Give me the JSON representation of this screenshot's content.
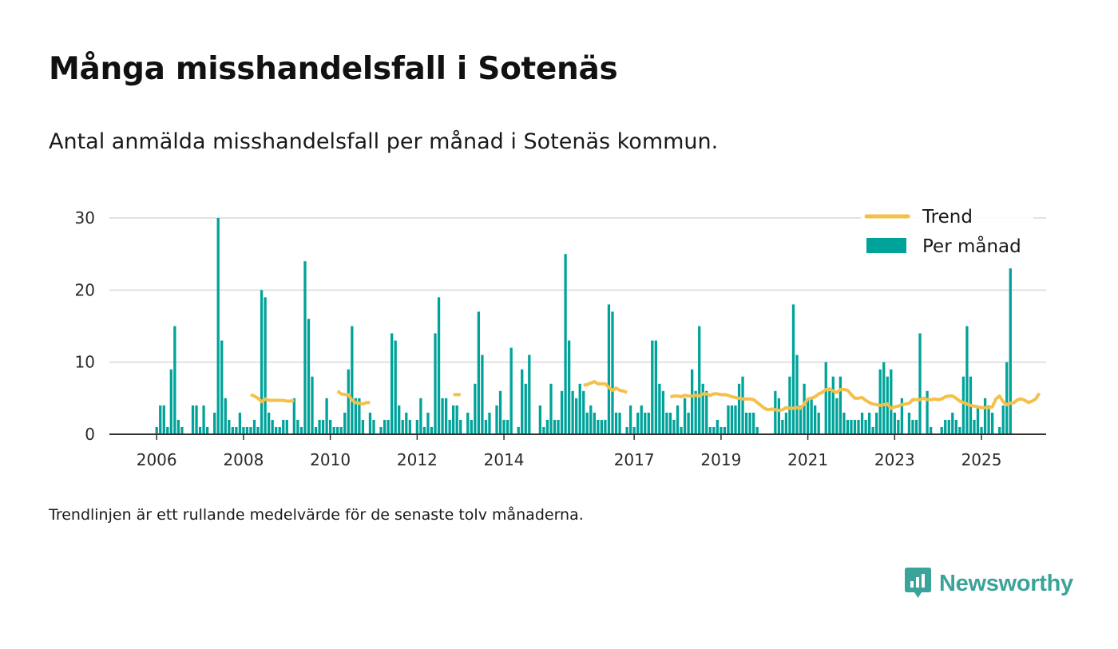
{
  "title": "Många misshandelsfall i Sotenäs",
  "subtitle": "Antal anmälda misshandelsfall per månad i Sotenäs kommun.",
  "note": "Trendlinjen är ett rullande medelvärde för de senaste tolv månaderna.",
  "brand": {
    "name": "Newsworthy",
    "icon": "newsworthy-logo-icon"
  },
  "colors": {
    "bars": "#00a39a",
    "trend": "#f5c04a",
    "grid": "#d9d9d9",
    "axis": "#333333",
    "brand": "#3aa39a"
  },
  "chart_data": {
    "type": "bar",
    "x_start": "2006-01",
    "xlabel": "",
    "ylabel": "",
    "ylim": [
      0,
      30
    ],
    "yticks": [
      0,
      10,
      20,
      30
    ],
    "xticks": [
      "2006",
      "2008",
      "2010",
      "2012",
      "2014",
      "2017",
      "2019",
      "2021",
      "2023",
      "2025"
    ],
    "grid": true,
    "legend_position": "top-right",
    "series": [
      {
        "name": "Per månad",
        "type": "bar",
        "values": [
          1,
          4,
          4,
          1,
          9,
          15,
          2,
          1,
          0,
          0,
          4,
          4,
          1,
          4,
          1,
          0,
          3,
          30,
          13,
          5,
          2,
          1,
          1,
          3,
          1,
          1,
          1,
          2,
          1,
          20,
          19,
          3,
          2,
          1,
          1,
          2,
          2,
          0,
          5,
          2,
          1,
          24,
          16,
          8,
          1,
          2,
          2,
          5,
          2,
          1,
          1,
          1,
          3,
          9,
          15,
          5,
          5,
          2,
          0,
          3,
          2,
          0,
          1,
          2,
          2,
          14,
          13,
          4,
          2,
          3,
          2,
          0,
          2,
          5,
          1,
          3,
          1,
          14,
          19,
          5,
          5,
          2,
          4,
          4,
          2,
          0,
          3,
          2,
          7,
          17,
          11,
          2,
          3,
          0,
          4,
          6,
          2,
          2,
          12,
          0,
          1,
          9,
          7,
          11,
          0,
          0,
          4,
          1,
          2,
          7,
          2,
          2,
          6,
          25,
          13,
          6,
          5,
          7,
          6,
          3,
          4,
          3,
          2,
          2,
          2,
          18,
          17,
          3,
          3,
          0,
          1,
          4,
          1,
          3,
          4,
          3,
          3,
          13,
          13,
          7,
          6,
          3,
          3,
          2,
          4,
          1,
          5,
          3,
          9,
          6,
          15,
          7,
          6,
          1,
          1,
          2,
          1,
          1,
          4,
          4,
          4,
          7,
          8,
          3,
          3,
          3,
          1,
          0,
          0,
          0,
          0,
          6,
          5,
          2,
          3,
          8,
          18,
          11,
          4,
          7,
          5,
          5,
          4,
          3,
          0,
          10,
          6,
          8,
          5,
          8,
          3,
          2,
          2,
          2,
          2,
          3,
          2,
          3,
          1,
          3,
          9,
          10,
          8,
          9,
          3,
          2,
          5,
          0,
          3,
          2,
          2,
          14,
          0,
          6,
          1,
          0,
          0,
          1,
          2,
          2,
          3,
          2,
          1,
          8,
          15,
          8,
          2,
          4,
          1,
          5,
          4,
          3,
          0,
          1,
          4,
          10,
          23
        ]
      },
      {
        "name": "Trend",
        "type": "line",
        "values": [
          null,
          null,
          null,
          null,
          null,
          null,
          null,
          null,
          null,
          null,
          null,
          null,
          null,
          null,
          null,
          null,
          null,
          null,
          null,
          null,
          null,
          null,
          null,
          null,
          null,
          null,
          5.5,
          5.3,
          5.0,
          4.5,
          4.9,
          4.7,
          4.7,
          4.7,
          4.7,
          4.7,
          4.6,
          4.6,
          4.7,
          null,
          null,
          null,
          null,
          null,
          null,
          null,
          null,
          null,
          null,
          null,
          6.0,
          5.6,
          5.5,
          5.5,
          4.7,
          4.4,
          4.3,
          4.2,
          4.4,
          4.4,
          null,
          null,
          null,
          null,
          null,
          null,
          null,
          null,
          null,
          null,
          null,
          null,
          null,
          null,
          null,
          null,
          null,
          null,
          null,
          null,
          null,
          null,
          5.5,
          5.5,
          5.5,
          null,
          null,
          null,
          null,
          null,
          null,
          null,
          null,
          null,
          null,
          null,
          null,
          null,
          null,
          null,
          null,
          null,
          null,
          null,
          null,
          null,
          null,
          null,
          null,
          null,
          null,
          null,
          null,
          null,
          null,
          null,
          null,
          null,
          6.8,
          6.9,
          7.1,
          7.3,
          7.0,
          7.0,
          7.0,
          6.5,
          6.1,
          6.4,
          6.1,
          6.0,
          5.8,
          null,
          null,
          null,
          null,
          null,
          null,
          null,
          null,
          null,
          null,
          null,
          5.2,
          5.3,
          5.3,
          5.2,
          5.4,
          5.3,
          5.3,
          5.4,
          5.3,
          5.6,
          5.6,
          5.4,
          5.6,
          5.6,
          5.5,
          5.5,
          5.4,
          5.2,
          5.1,
          5.0,
          4.9,
          4.9,
          4.9,
          4.8,
          4.4,
          4.0,
          3.6,
          3.4,
          3.5,
          3.4,
          3.3,
          3.4,
          3.7,
          3.6,
          3.6,
          3.7,
          3.6,
          4.2,
          4.9,
          5.0,
          5.2,
          5.6,
          5.8,
          6.2,
          6.3,
          6.0,
          5.8,
          6.2,
          6.2,
          6.1,
          5.5,
          5.0,
          5.0,
          5.1,
          4.7,
          4.4,
          4.2,
          4.1,
          4.0,
          4.1,
          4.2,
          3.6,
          3.8,
          3.9,
          4.1,
          4.2,
          4.3,
          4.8,
          4.8,
          4.8,
          5.0,
          4.8,
          4.8,
          4.9,
          4.8,
          4.9,
          5.2,
          5.3,
          5.3,
          5.0,
          4.6,
          4.4,
          4.2,
          4.0,
          3.9,
          3.8,
          3.7,
          3.7,
          3.7,
          3.8,
          4.9,
          5.3,
          4.5,
          4.1,
          4.3,
          4.4,
          4.8,
          4.9,
          4.7,
          4.4,
          4.6,
          4.9,
          5.7
        ]
      }
    ]
  }
}
